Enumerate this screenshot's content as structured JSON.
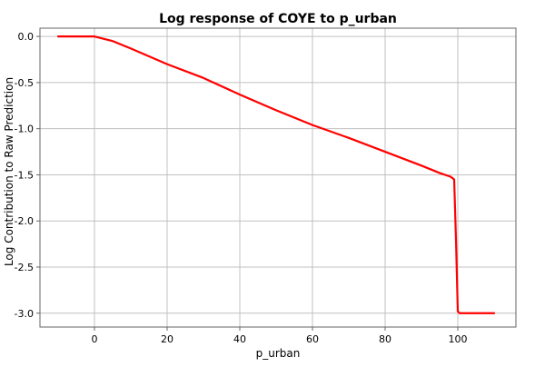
{
  "chart_data": {
    "type": "line",
    "title": "Log response of COYE to p_urban",
    "xlabel": "p_urban",
    "ylabel": "Log Contribution to Raw Prediction",
    "xlim": [
      -15,
      116
    ],
    "ylim": [
      -3.15,
      0.09
    ],
    "x_ticks": [
      0,
      20,
      40,
      60,
      80,
      100
    ],
    "y_ticks": [
      0.0,
      -0.5,
      -1.0,
      -1.5,
      -2.0,
      -2.5,
      -3.0
    ],
    "x_tick_labels": [
      "0",
      "20",
      "40",
      "60",
      "80",
      "100"
    ],
    "y_tick_labels": [
      "0.0",
      "-0.5",
      "-1.0",
      "-1.5",
      "-2.0",
      "-2.5",
      "-3.0"
    ],
    "grid": true,
    "series": [
      {
        "color": "#ff0000",
        "x": [
          -10,
          -5,
          0,
          2,
          5,
          10,
          20,
          30,
          40,
          50,
          60,
          70,
          80,
          90,
          95,
          98,
          99,
          99.5,
          100,
          100.5,
          105,
          110
        ],
        "y": [
          0.0,
          0.0,
          0.0,
          -0.02,
          -0.05,
          -0.13,
          -0.3,
          -0.45,
          -0.63,
          -0.8,
          -0.96,
          -1.1,
          -1.25,
          -1.4,
          -1.48,
          -1.52,
          -1.55,
          -2.2,
          -2.98,
          -3.0,
          -3.0,
          -3.0
        ]
      }
    ]
  }
}
